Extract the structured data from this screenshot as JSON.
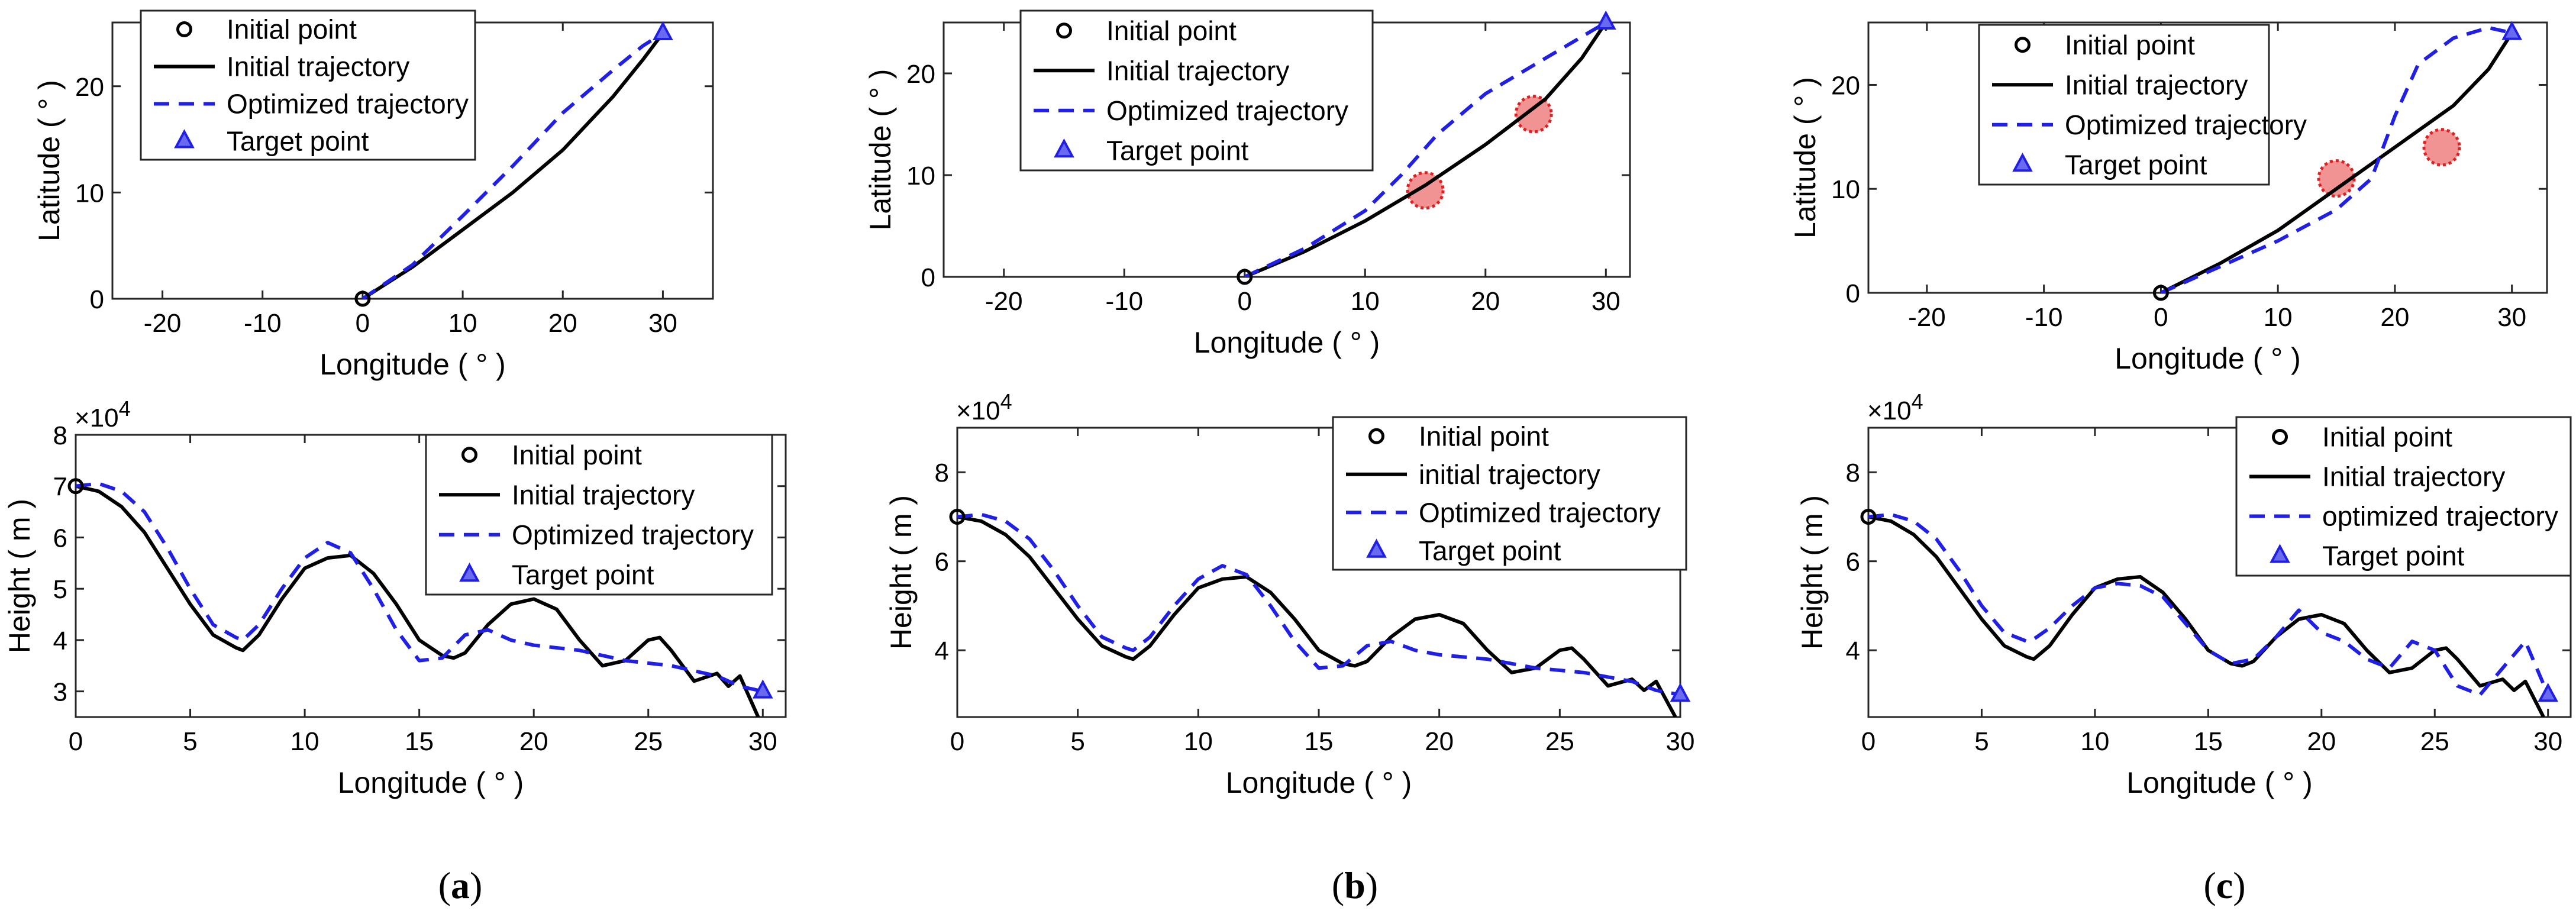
{
  "chart_data": [
    {
      "panel": "a",
      "type": "line",
      "plot": "latlon",
      "xlabel": "Longitude ( ° )",
      "ylabel": "Latitude ( ° )",
      "xlim": [
        -25,
        35
      ],
      "ylim": [
        0,
        26
      ],
      "xticks": [
        -20,
        -10,
        0,
        10,
        20,
        30
      ],
      "yticks": [
        0,
        10,
        20
      ],
      "legend": [
        "Initial point",
        "Initial trajectory",
        "Optimized trajectory",
        "Target point"
      ],
      "initial_point": [
        0,
        0
      ],
      "target_point": [
        30,
        25
      ],
      "series": [
        {
          "name": "Initial trajectory",
          "style": "solid",
          "color": "#000000",
          "x": [
            0,
            5,
            10,
            15,
            20,
            25,
            28,
            30
          ],
          "y": [
            0,
            3,
            6.5,
            10,
            14,
            19,
            22.5,
            25
          ]
        },
        {
          "name": "Optimized trajectory",
          "style": "dashed",
          "color": "#1f1fe6",
          "x": [
            0,
            5,
            10,
            15,
            20,
            25,
            28,
            30
          ],
          "y": [
            0,
            3.2,
            7.8,
            12.5,
            17.5,
            21.5,
            23.8,
            25
          ]
        }
      ],
      "obstacles": []
    },
    {
      "panel": "b",
      "type": "line",
      "plot": "latlon",
      "xlabel": "Longitude ( ° )",
      "ylabel": "Latitude ( ° )",
      "xlim": [
        -25,
        32
      ],
      "ylim": [
        0,
        25
      ],
      "xticks": [
        -20,
        -10,
        0,
        10,
        20,
        30
      ],
      "yticks": [
        0,
        10,
        20
      ],
      "legend": [
        "Initial point",
        "Initial trajectory",
        "Optimized trajectory",
        "Target point"
      ],
      "initial_point": [
        0,
        0
      ],
      "target_point": [
        30,
        25
      ],
      "series": [
        {
          "name": "Initial trajectory",
          "style": "solid",
          "color": "#000000",
          "x": [
            0,
            5,
            10,
            15,
            20,
            25,
            28,
            30
          ],
          "y": [
            0,
            2.5,
            5.5,
            9,
            13,
            17.5,
            21.5,
            25
          ]
        },
        {
          "name": "Optimized trajectory",
          "style": "dashed",
          "color": "#1f1fe6",
          "x": [
            0,
            5,
            10,
            13,
            16,
            20,
            25,
            30
          ],
          "y": [
            0,
            2.8,
            6.5,
            10,
            14,
            18,
            21.5,
            25
          ]
        }
      ],
      "obstacles": [
        {
          "x": 15,
          "y": 8.5
        },
        {
          "x": 24,
          "y": 16
        }
      ]
    },
    {
      "panel": "c",
      "type": "line",
      "plot": "latlon",
      "xlabel": "Longitude ( ° )",
      "ylabel": "Latitude ( ° )",
      "xlim": [
        -25,
        33
      ],
      "ylim": [
        0,
        26
      ],
      "xticks": [
        -20,
        -10,
        0,
        10,
        20,
        30
      ],
      "yticks": [
        0,
        10,
        20
      ],
      "legend": [
        "Initial point",
        "Initial trajectory",
        "Optimized trajectory",
        "Target point"
      ],
      "initial_point": [
        0,
        0
      ],
      "target_point": [
        30,
        25
      ],
      "series": [
        {
          "name": "Initial trajectory",
          "style": "solid",
          "color": "#000000",
          "x": [
            0,
            5,
            10,
            15,
            20,
            25,
            28,
            30
          ],
          "y": [
            0,
            2.8,
            6,
            10,
            14,
            18,
            21.5,
            25
          ]
        },
        {
          "name": "Optimized trajectory",
          "style": "dashed",
          "color": "#1f1fe6",
          "x": [
            0,
            5,
            10,
            15,
            18,
            20,
            22,
            25,
            28,
            30
          ],
          "y": [
            0,
            2.5,
            5,
            8,
            11,
            17,
            22,
            24.5,
            25.5,
            25
          ]
        }
      ],
      "obstacles": [
        {
          "x": 15,
          "y": 11
        },
        {
          "x": 24,
          "y": 14
        }
      ]
    },
    {
      "panel": "a",
      "type": "line",
      "plot": "height",
      "xlabel": "Longitude ( ° )",
      "ylabel": "Height ( m )",
      "exponent_label": "×10^4",
      "xlim": [
        0,
        31
      ],
      "ylim": [
        2.5,
        8
      ],
      "xticks": [
        0,
        5,
        10,
        15,
        20,
        25,
        30
      ],
      "yticks": [
        3,
        4,
        5,
        6,
        7,
        8
      ],
      "legend": [
        "Initial point",
        "Initial trajectory",
        "Optimized trajectory",
        "Target point"
      ],
      "initial_point": [
        0,
        7
      ],
      "target_point": [
        30,
        3
      ],
      "series": [
        {
          "name": "Initial trajectory",
          "style": "solid",
          "color": "#000000",
          "x": [
            0,
            1,
            2,
            3,
            4,
            5,
            6,
            7,
            7.3,
            8,
            9,
            10,
            11,
            12,
            13,
            14,
            15,
            16,
            16.5,
            17,
            18,
            19,
            20,
            21,
            22,
            23,
            24,
            25,
            25.5,
            26,
            27,
            28,
            28.5,
            29,
            29.5,
            29.8
          ],
          "y": [
            7,
            6.9,
            6.6,
            6.1,
            5.4,
            4.7,
            4.1,
            3.85,
            3.8,
            4.1,
            4.8,
            5.4,
            5.6,
            5.65,
            5.3,
            4.7,
            4.0,
            3.7,
            3.65,
            3.75,
            4.3,
            4.7,
            4.8,
            4.6,
            4.0,
            3.5,
            3.6,
            4.0,
            4.05,
            3.8,
            3.2,
            3.35,
            3.1,
            3.3,
            2.8,
            2.5
          ]
        },
        {
          "name": "Optimized trajectory",
          "style": "dashed",
          "color": "#1f1fe6",
          "x": [
            0,
            1,
            2,
            3,
            4,
            5,
            6,
            7,
            7.3,
            8,
            9,
            10,
            11,
            12,
            13,
            14,
            15,
            16,
            17,
            18,
            19,
            20,
            22,
            24,
            26,
            28,
            29,
            30
          ],
          "y": [
            7,
            7.05,
            6.9,
            6.5,
            5.8,
            5.0,
            4.3,
            4.05,
            4.0,
            4.3,
            5.0,
            5.6,
            5.9,
            5.7,
            5.0,
            4.2,
            3.6,
            3.65,
            4.1,
            4.2,
            4.0,
            3.9,
            3.8,
            3.6,
            3.5,
            3.3,
            3.1,
            3.0
          ]
        }
      ]
    },
    {
      "panel": "b",
      "type": "line",
      "plot": "height",
      "xlabel": "Longitude ( ° )",
      "ylabel": "Height ( m )",
      "exponent_label": "×10^4",
      "xlim": [
        0,
        30
      ],
      "ylim": [
        2.5,
        9
      ],
      "xticks": [
        0,
        5,
        10,
        15,
        20,
        25,
        30
      ],
      "yticks": [
        4,
        6,
        8
      ],
      "legend": [
        "Initial point",
        "initial trajectory",
        "Optimized trajectory",
        "Target point"
      ],
      "initial_point": [
        0,
        7
      ],
      "target_point": [
        30,
        3
      ],
      "series": [
        {
          "name": "initial trajectory",
          "style": "solid",
          "color": "#000000",
          "x": [
            0,
            1,
            2,
            3,
            4,
            5,
            6,
            7,
            7.3,
            8,
            9,
            10,
            11,
            12,
            13,
            14,
            15,
            16,
            16.5,
            17,
            18,
            19,
            20,
            21,
            22,
            23,
            24,
            25,
            25.5,
            26,
            27,
            28,
            28.5,
            29,
            29.5,
            29.8
          ],
          "y": [
            7,
            6.9,
            6.6,
            6.1,
            5.4,
            4.7,
            4.1,
            3.85,
            3.8,
            4.1,
            4.8,
            5.4,
            5.6,
            5.65,
            5.3,
            4.7,
            4.0,
            3.7,
            3.65,
            3.75,
            4.3,
            4.7,
            4.8,
            4.6,
            4.0,
            3.5,
            3.6,
            4.0,
            4.05,
            3.8,
            3.2,
            3.35,
            3.1,
            3.3,
            2.8,
            2.5
          ]
        },
        {
          "name": "Optimized trajectory",
          "style": "dashed",
          "color": "#1f1fe6",
          "x": [
            0,
            1,
            2,
            3,
            4,
            5,
            6,
            7,
            7.3,
            8,
            9,
            10,
            11,
            12,
            13,
            14,
            15,
            16,
            17,
            18,
            19,
            20,
            22,
            24,
            26,
            28,
            29,
            30
          ],
          "y": [
            7,
            7.05,
            6.9,
            6.5,
            5.8,
            5.0,
            4.3,
            4.05,
            4.0,
            4.3,
            5.0,
            5.6,
            5.9,
            5.7,
            5.0,
            4.2,
            3.6,
            3.65,
            4.1,
            4.2,
            4.0,
            3.9,
            3.8,
            3.6,
            3.5,
            3.3,
            3.1,
            3.0
          ]
        }
      ]
    },
    {
      "panel": "c",
      "type": "line",
      "plot": "height",
      "xlabel": "Longitude ( ° )",
      "ylabel": "Height ( m )",
      "exponent_label": "×10^4",
      "xlim": [
        0,
        31
      ],
      "ylim": [
        2.5,
        9
      ],
      "xticks": [
        0,
        5,
        10,
        15,
        20,
        25,
        30
      ],
      "yticks": [
        4,
        6,
        8
      ],
      "legend": [
        "Initial point",
        "Initial trajectory",
        "optimized trajectory",
        "Target point"
      ],
      "initial_point": [
        0,
        7
      ],
      "target_point": [
        30,
        3
      ],
      "series": [
        {
          "name": "Initial trajectory",
          "style": "solid",
          "color": "#000000",
          "x": [
            0,
            1,
            2,
            3,
            4,
            5,
            6,
            7,
            7.3,
            8,
            9,
            10,
            11,
            12,
            13,
            14,
            15,
            16,
            16.5,
            17,
            18,
            19,
            20,
            21,
            22,
            23,
            24,
            25,
            25.5,
            26,
            27,
            28,
            28.5,
            29,
            29.5,
            29.8
          ],
          "y": [
            7,
            6.9,
            6.6,
            6.1,
            5.4,
            4.7,
            4.1,
            3.85,
            3.8,
            4.1,
            4.8,
            5.4,
            5.6,
            5.65,
            5.3,
            4.7,
            4.0,
            3.7,
            3.65,
            3.75,
            4.3,
            4.7,
            4.8,
            4.6,
            4.0,
            3.5,
            3.6,
            4.0,
            4.05,
            3.8,
            3.2,
            3.35,
            3.1,
            3.3,
            2.8,
            2.5
          ]
        },
        {
          "name": "optimized trajectory",
          "style": "dashed",
          "color": "#1f1fe6",
          "x": [
            0,
            1,
            2,
            3,
            4,
            5,
            6,
            7,
            7.3,
            8,
            9,
            10,
            11,
            12,
            13,
            14,
            15,
            16,
            17,
            18,
            19,
            20,
            21,
            22,
            23,
            24,
            25,
            26,
            27,
            28,
            29,
            30
          ],
          "y": [
            7,
            7.05,
            6.9,
            6.5,
            5.8,
            5.0,
            4.4,
            4.2,
            4.25,
            4.5,
            5.0,
            5.4,
            5.5,
            5.45,
            5.2,
            4.6,
            4.0,
            3.7,
            3.8,
            4.3,
            4.9,
            4.4,
            4.2,
            3.8,
            3.6,
            4.2,
            4.0,
            3.2,
            3.0,
            3.6,
            4.2,
            3.0
          ]
        }
      ]
    }
  ],
  "captions": [
    {
      "panel": "a",
      "open": "(",
      "letter": "a",
      "close": ")"
    },
    {
      "panel": "b",
      "open": "(",
      "letter": "b",
      "close": ")"
    },
    {
      "panel": "c",
      "open": "(",
      "letter": "c",
      "close": ")"
    }
  ],
  "colors": {
    "initial": "#000000",
    "optimized": "#1f1fe6",
    "target": "#1f1fe6",
    "obstacle_fill": "#f08080",
    "obstacle_stroke": "#e02020"
  }
}
